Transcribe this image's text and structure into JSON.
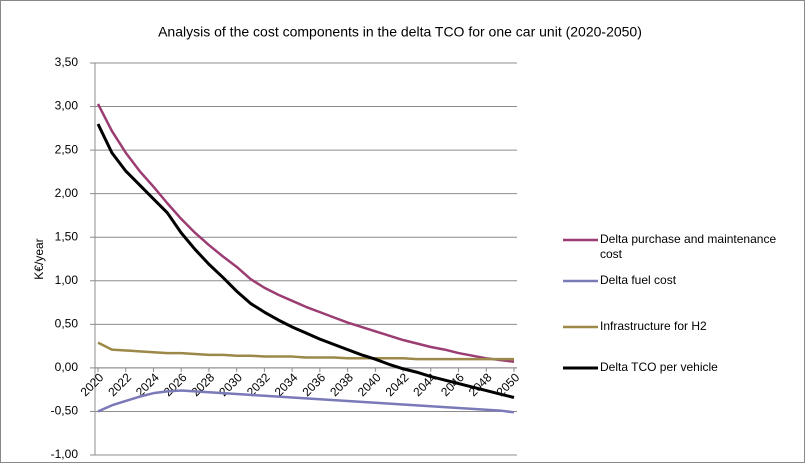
{
  "chart_data": {
    "type": "line",
    "title": "Analysis of the cost components in the delta TCO for one car unit (2020-2050)",
    "y_label": "K€/year",
    "x": [
      2020,
      2021,
      2022,
      2023,
      2024,
      2025,
      2026,
      2027,
      2028,
      2029,
      2030,
      2031,
      2032,
      2033,
      2034,
      2035,
      2036,
      2037,
      2038,
      2039,
      2040,
      2041,
      2042,
      2043,
      2044,
      2045,
      2046,
      2047,
      2048,
      2049,
      2050
    ],
    "xlim": [
      2020,
      2050
    ],
    "xticks": [
      2020,
      2022,
      2024,
      2026,
      2028,
      2030,
      2032,
      2034,
      2036,
      2038,
      2040,
      2042,
      2044,
      2046,
      2048,
      2050
    ],
    "ylim": [
      -1,
      3.5
    ],
    "yticks": [
      {
        "value": -1,
        "label": "-1,00"
      },
      {
        "value": -0.5,
        "label": "-0,50"
      },
      {
        "value": 0,
        "label": "0,00"
      },
      {
        "value": 0.5,
        "label": "0,50"
      },
      {
        "value": 1,
        "label": "1,00"
      },
      {
        "value": 1.5,
        "label": "1,50"
      },
      {
        "value": 2,
        "label": "2,00"
      },
      {
        "value": 2.5,
        "label": "2,50"
      },
      {
        "value": 3,
        "label": "3,00"
      },
      {
        "value": 3.5,
        "label": "3,50"
      }
    ],
    "grid": true,
    "legend": "right",
    "series": [
      {
        "name": "Delta purchase and maintenance cost",
        "color": "#9b3d72",
        "values": [
          3.03,
          2.72,
          2.47,
          2.26,
          2.08,
          1.89,
          1.71,
          1.55,
          1.41,
          1.28,
          1.16,
          1.02,
          0.92,
          0.84,
          0.77,
          0.7,
          0.64,
          0.58,
          0.52,
          0.47,
          0.42,
          0.37,
          0.32,
          0.28,
          0.24,
          0.21,
          0.17,
          0.14,
          0.11,
          0.09,
          0.07
        ]
      },
      {
        "name": "Delta fuel cost",
        "color": "#7a7ab8",
        "values": [
          -0.5,
          -0.43,
          -0.38,
          -0.33,
          -0.29,
          -0.27,
          -0.26,
          -0.27,
          -0.28,
          -0.29,
          -0.3,
          -0.31,
          -0.32,
          -0.33,
          -0.34,
          -0.35,
          -0.36,
          -0.37,
          -0.38,
          -0.39,
          -0.4,
          -0.41,
          -0.42,
          -0.43,
          -0.44,
          -0.45,
          -0.46,
          -0.47,
          -0.48,
          -0.49,
          -0.51
        ]
      },
      {
        "name": "Infrastructure for H2",
        "color": "#9c8848",
        "values": [
          0.29,
          0.21,
          0.2,
          0.19,
          0.18,
          0.17,
          0.17,
          0.16,
          0.15,
          0.15,
          0.14,
          0.14,
          0.13,
          0.13,
          0.13,
          0.12,
          0.12,
          0.12,
          0.11,
          0.11,
          0.11,
          0.11,
          0.11,
          0.1,
          0.1,
          0.1,
          0.1,
          0.1,
          0.1,
          0.1,
          0.1
        ]
      },
      {
        "name": "Delta TCO per vehicle",
        "color": "#000000",
        "values": [
          2.8,
          2.47,
          2.26,
          2.1,
          1.94,
          1.78,
          1.55,
          1.36,
          1.19,
          1.04,
          0.88,
          0.74,
          0.64,
          0.55,
          0.47,
          0.4,
          0.33,
          0.27,
          0.21,
          0.15,
          0.1,
          0.04,
          -0.01,
          -0.05,
          -0.1,
          -0.14,
          -0.18,
          -0.22,
          -0.26,
          -0.3,
          -0.34
        ]
      }
    ]
  }
}
